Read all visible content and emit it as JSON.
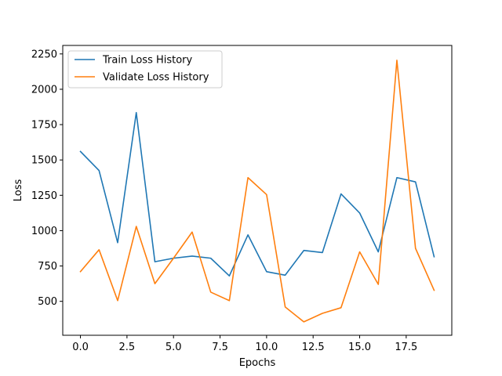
{
  "chart_data": {
    "type": "line",
    "title": "",
    "xlabel": "Epochs",
    "ylabel": "Loss",
    "xlim": [
      -0.95,
      19.95
    ],
    "ylim": [
      260,
      2310
    ],
    "xticks": [
      0.0,
      2.5,
      5.0,
      7.5,
      10.0,
      12.5,
      15.0,
      17.5
    ],
    "xtick_labels": [
      "0.0",
      "2.5",
      "5.0",
      "7.5",
      "10.0",
      "12.5",
      "15.0",
      "17.5"
    ],
    "yticks": [
      500,
      750,
      1000,
      1250,
      1500,
      1750,
      2000,
      2250
    ],
    "ytick_labels": [
      "500",
      "750",
      "1000",
      "1250",
      "1500",
      "1750",
      "2000",
      "2250"
    ],
    "grid": false,
    "legend_position": "top-left",
    "x": [
      0,
      1,
      2,
      3,
      4,
      5,
      6,
      7,
      8,
      9,
      10,
      11,
      12,
      13,
      14,
      15,
      16,
      17,
      18,
      19
    ],
    "series": [
      {
        "name": "Train Loss History",
        "color": "#1f77b4",
        "values": [
          1560,
          1425,
          915,
          1835,
          780,
          805,
          820,
          805,
          680,
          970,
          710,
          685,
          860,
          845,
          1260,
          1125,
          850,
          1375,
          1345,
          815
        ]
      },
      {
        "name": "Validate Loss History",
        "color": "#ff7f0e",
        "values": [
          710,
          865,
          505,
          1030,
          625,
          805,
          990,
          565,
          505,
          1375,
          1255,
          460,
          355,
          415,
          455,
          850,
          620,
          2205,
          875,
          578
        ]
      }
    ]
  }
}
